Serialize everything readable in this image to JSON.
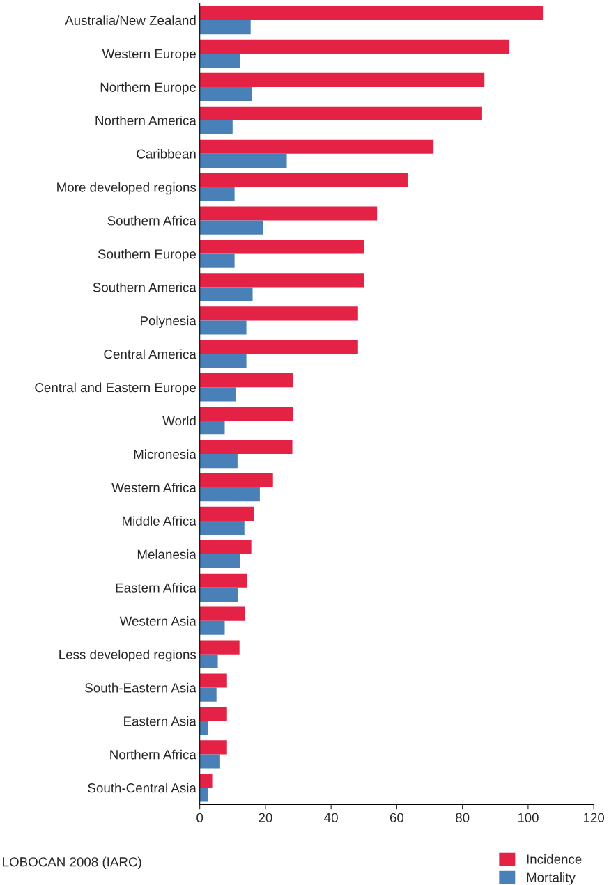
{
  "chart_data": {
    "type": "bar",
    "orientation": "horizontal",
    "categories": [
      "Australia/New Zealand",
      "Western Europe",
      "Northern Europe",
      "Northern America",
      "Caribbean",
      "More developed regions",
      "Southern Africa",
      "Southern Europe",
      "Southern America",
      "Polynesia",
      "Central America",
      "Central and Eastern Europe",
      "World",
      "Micronesia",
      "Western Africa",
      "Middle Africa",
      "Melanesia",
      "Eastern Africa",
      "Western Asia",
      "Less developed regions",
      "South-Eastern Asia",
      "Eastern Asia",
      "Northern Africa",
      "South-Central Asia"
    ],
    "series": [
      {
        "name": "Incidence",
        "color": "#e32245",
        "values": [
          104.5,
          94.3,
          86.7,
          86.0,
          71.2,
          63.3,
          54.0,
          50.1,
          50.1,
          48.2,
          48.2,
          28.5,
          28.5,
          28.2,
          22.3,
          16.6,
          15.7,
          14.4,
          13.8,
          12.1,
          8.3,
          8.3,
          8.3,
          3.8
        ]
      },
      {
        "name": "Mortality",
        "color": "#4a80b8",
        "values": [
          15.5,
          12.3,
          15.9,
          10.0,
          26.5,
          10.6,
          19.3,
          10.6,
          16.1,
          14.2,
          14.2,
          11.0,
          7.6,
          11.5,
          18.3,
          13.6,
          12.3,
          11.7,
          7.6,
          5.5,
          5.1,
          2.5,
          6.2,
          2.5
        ]
      }
    ],
    "xlim": [
      0,
      120
    ],
    "xticks": [
      0,
      20,
      40,
      60,
      80,
      100,
      120
    ],
    "grid": false,
    "legend": "bottom right",
    "annotations": [
      "LOBOCAN 2008 (IARC)"
    ]
  }
}
